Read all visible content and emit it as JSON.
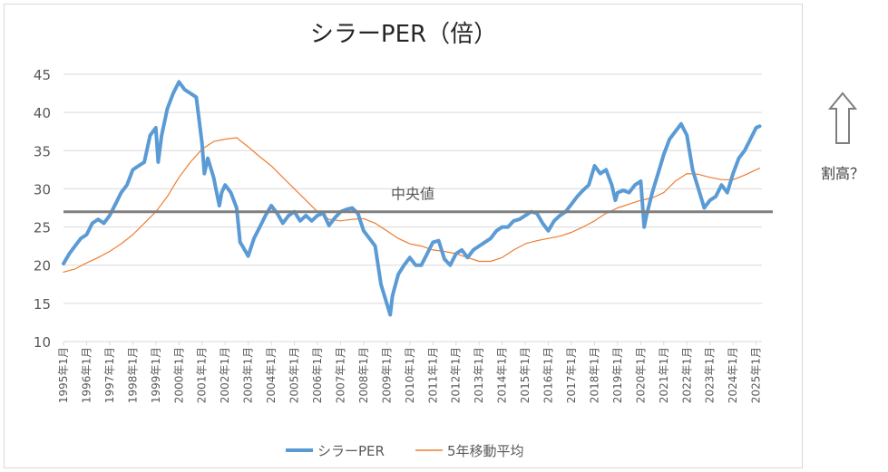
{
  "side_note": "割高？",
  "chart_data": {
    "type": "line",
    "title": "シラーPER（倍）",
    "ylim": [
      10,
      45
    ],
    "yticks": [
      "10",
      "15",
      "20",
      "25",
      "30",
      "35",
      "40",
      "45"
    ],
    "xlim": [
      1995.0,
      2025.25
    ],
    "x_tick_labels": [
      "1995年1月",
      "1996年1月",
      "1997年1月",
      "1998年1月",
      "1999年1月",
      "2000年1月",
      "2001年1月",
      "2002年1月",
      "2003年1月",
      "2004年1月",
      "2005年1月",
      "2006年1月",
      "2007年1月",
      "2008年1月",
      "2009年1月",
      "2010年1月",
      "2011年1月",
      "2012年1月",
      "2013年1月",
      "2014年1月",
      "2015年1月",
      "2016年1月",
      "2017年1月",
      "2018年1月",
      "2019年1月",
      "2020年1月",
      "2021年1月",
      "2022年1月",
      "2023年1月",
      "2024年1月",
      "2025年1月"
    ],
    "grid": true,
    "legend_position": "bottom",
    "reference_line": {
      "label": "中央値",
      "value": 27.0,
      "color": "#7f7f7f"
    },
    "series": [
      {
        "name": "シラーPER",
        "color": "#5b9bd5",
        "points": [
          [
            1995.0,
            20.2
          ],
          [
            1995.25,
            21.5
          ],
          [
            1995.5,
            22.5
          ],
          [
            1995.75,
            23.5
          ],
          [
            1996.0,
            24.0
          ],
          [
            1996.25,
            25.5
          ],
          [
            1996.5,
            26.0
          ],
          [
            1996.75,
            25.5
          ],
          [
            1997.0,
            26.5
          ],
          [
            1997.25,
            28.0
          ],
          [
            1997.5,
            29.5
          ],
          [
            1997.75,
            30.5
          ],
          [
            1998.0,
            32.5
          ],
          [
            1998.25,
            33.0
          ],
          [
            1998.5,
            33.5
          ],
          [
            1998.75,
            37.0
          ],
          [
            1999.0,
            38.0
          ],
          [
            1999.1,
            33.5
          ],
          [
            1999.25,
            37.0
          ],
          [
            1999.5,
            40.5
          ],
          [
            1999.75,
            42.5
          ],
          [
            2000.0,
            44.0
          ],
          [
            2000.25,
            43.0
          ],
          [
            2000.5,
            42.5
          ],
          [
            2000.75,
            42.0
          ],
          [
            2001.0,
            36.0
          ],
          [
            2001.1,
            32.0
          ],
          [
            2001.25,
            34.0
          ],
          [
            2001.5,
            31.5
          ],
          [
            2001.75,
            27.8
          ],
          [
            2001.85,
            29.5
          ],
          [
            2002.0,
            30.5
          ],
          [
            2002.25,
            29.5
          ],
          [
            2002.5,
            27.5
          ],
          [
            2002.65,
            23.0
          ],
          [
            2002.75,
            22.5
          ],
          [
            2003.0,
            21.2
          ],
          [
            2003.25,
            23.5
          ],
          [
            2003.5,
            25.0
          ],
          [
            2003.75,
            26.5
          ],
          [
            2004.0,
            27.8
          ],
          [
            2004.25,
            26.8
          ],
          [
            2004.5,
            25.5
          ],
          [
            2004.75,
            26.5
          ],
          [
            2005.0,
            27.0
          ],
          [
            2005.25,
            25.8
          ],
          [
            2005.5,
            26.5
          ],
          [
            2005.75,
            25.8
          ],
          [
            2006.0,
            26.5
          ],
          [
            2006.25,
            26.8
          ],
          [
            2006.5,
            25.2
          ],
          [
            2006.75,
            26.2
          ],
          [
            2007.0,
            27.0
          ],
          [
            2007.25,
            27.3
          ],
          [
            2007.5,
            27.5
          ],
          [
            2007.75,
            26.8
          ],
          [
            2008.0,
            24.5
          ],
          [
            2008.25,
            23.5
          ],
          [
            2008.5,
            22.5
          ],
          [
            2008.75,
            17.5
          ],
          [
            2009.0,
            15.0
          ],
          [
            2009.15,
            13.5
          ],
          [
            2009.25,
            16.0
          ],
          [
            2009.5,
            18.8
          ],
          [
            2009.75,
            20.0
          ],
          [
            2010.0,
            21.0
          ],
          [
            2010.25,
            20.0
          ],
          [
            2010.5,
            20.0
          ],
          [
            2010.75,
            21.5
          ],
          [
            2011.0,
            23.0
          ],
          [
            2011.25,
            23.2
          ],
          [
            2011.5,
            20.8
          ],
          [
            2011.75,
            20.0
          ],
          [
            2012.0,
            21.5
          ],
          [
            2012.25,
            22.0
          ],
          [
            2012.5,
            21.0
          ],
          [
            2012.75,
            22.0
          ],
          [
            2013.0,
            22.5
          ],
          [
            2013.25,
            23.0
          ],
          [
            2013.5,
            23.5
          ],
          [
            2013.75,
            24.5
          ],
          [
            2014.0,
            25.0
          ],
          [
            2014.25,
            25.0
          ],
          [
            2014.5,
            25.8
          ],
          [
            2014.75,
            26.0
          ],
          [
            2015.0,
            26.5
          ],
          [
            2015.25,
            27.0
          ],
          [
            2015.5,
            26.8
          ],
          [
            2015.75,
            25.5
          ],
          [
            2016.0,
            24.5
          ],
          [
            2016.25,
            25.8
          ],
          [
            2016.5,
            26.5
          ],
          [
            2016.75,
            27.0
          ],
          [
            2017.0,
            28.0
          ],
          [
            2017.25,
            29.0
          ],
          [
            2017.5,
            29.8
          ],
          [
            2017.75,
            30.5
          ],
          [
            2018.0,
            33.0
          ],
          [
            2018.25,
            32.0
          ],
          [
            2018.5,
            32.5
          ],
          [
            2018.75,
            30.5
          ],
          [
            2018.9,
            28.5
          ],
          [
            2019.0,
            29.5
          ],
          [
            2019.25,
            29.8
          ],
          [
            2019.5,
            29.5
          ],
          [
            2019.75,
            30.5
          ],
          [
            2020.0,
            31.0
          ],
          [
            2020.15,
            25.0
          ],
          [
            2020.25,
            26.5
          ],
          [
            2020.5,
            29.5
          ],
          [
            2020.75,
            32.0
          ],
          [
            2021.0,
            34.5
          ],
          [
            2021.25,
            36.5
          ],
          [
            2021.5,
            37.5
          ],
          [
            2021.75,
            38.5
          ],
          [
            2022.0,
            37.0
          ],
          [
            2022.25,
            32.5
          ],
          [
            2022.5,
            30.0
          ],
          [
            2022.75,
            27.5
          ],
          [
            2023.0,
            28.5
          ],
          [
            2023.25,
            29.0
          ],
          [
            2023.5,
            30.5
          ],
          [
            2023.75,
            29.5
          ],
          [
            2024.0,
            32.0
          ],
          [
            2024.25,
            34.0
          ],
          [
            2024.5,
            35.0
          ],
          [
            2024.75,
            36.5
          ],
          [
            2025.0,
            38.0
          ],
          [
            2025.15,
            38.2
          ]
        ]
      },
      {
        "name": "5年移動平均",
        "color": "#ed7d31",
        "points": [
          [
            1995.0,
            19.1
          ],
          [
            1995.5,
            19.5
          ],
          [
            1996.0,
            20.3
          ],
          [
            1996.5,
            21.0
          ],
          [
            1997.0,
            21.8
          ],
          [
            1997.5,
            22.8
          ],
          [
            1998.0,
            24.0
          ],
          [
            1998.5,
            25.5
          ],
          [
            1999.0,
            27.0
          ],
          [
            1999.5,
            29.0
          ],
          [
            2000.0,
            31.5
          ],
          [
            2000.5,
            33.5
          ],
          [
            2001.0,
            35.2
          ],
          [
            2001.5,
            36.2
          ],
          [
            2002.0,
            36.5
          ],
          [
            2002.5,
            36.7
          ],
          [
            2003.0,
            35.5
          ],
          [
            2003.5,
            34.2
          ],
          [
            2004.0,
            33.0
          ],
          [
            2004.5,
            31.5
          ],
          [
            2005.0,
            30.0
          ],
          [
            2005.5,
            28.5
          ],
          [
            2006.0,
            27.0
          ],
          [
            2006.5,
            26.0
          ],
          [
            2007.0,
            25.8
          ],
          [
            2007.5,
            26.0
          ],
          [
            2008.0,
            26.1
          ],
          [
            2008.5,
            25.5
          ],
          [
            2009.0,
            24.5
          ],
          [
            2009.5,
            23.5
          ],
          [
            2010.0,
            22.8
          ],
          [
            2010.5,
            22.5
          ],
          [
            2011.0,
            22.0
          ],
          [
            2011.5,
            21.8
          ],
          [
            2012.0,
            21.5
          ],
          [
            2012.5,
            21.0
          ],
          [
            2013.0,
            20.5
          ],
          [
            2013.5,
            20.5
          ],
          [
            2014.0,
            21.0
          ],
          [
            2014.5,
            22.0
          ],
          [
            2015.0,
            22.8
          ],
          [
            2015.5,
            23.2
          ],
          [
            2016.0,
            23.5
          ],
          [
            2016.5,
            23.8
          ],
          [
            2017.0,
            24.3
          ],
          [
            2017.5,
            25.0
          ],
          [
            2018.0,
            25.8
          ],
          [
            2018.5,
            26.8
          ],
          [
            2019.0,
            27.5
          ],
          [
            2019.5,
            28.0
          ],
          [
            2020.0,
            28.5
          ],
          [
            2020.5,
            28.8
          ],
          [
            2021.0,
            29.5
          ],
          [
            2021.5,
            31.0
          ],
          [
            2022.0,
            32.0
          ],
          [
            2022.5,
            31.9
          ],
          [
            2023.0,
            31.5
          ],
          [
            2023.5,
            31.2
          ],
          [
            2024.0,
            31.2
          ],
          [
            2024.5,
            31.8
          ],
          [
            2025.0,
            32.5
          ],
          [
            2025.15,
            32.7
          ]
        ]
      }
    ]
  },
  "colors": {
    "grid": "#d9d9d9",
    "axis_text": "#595959",
    "up_arrow": "#7f7f7f"
  }
}
